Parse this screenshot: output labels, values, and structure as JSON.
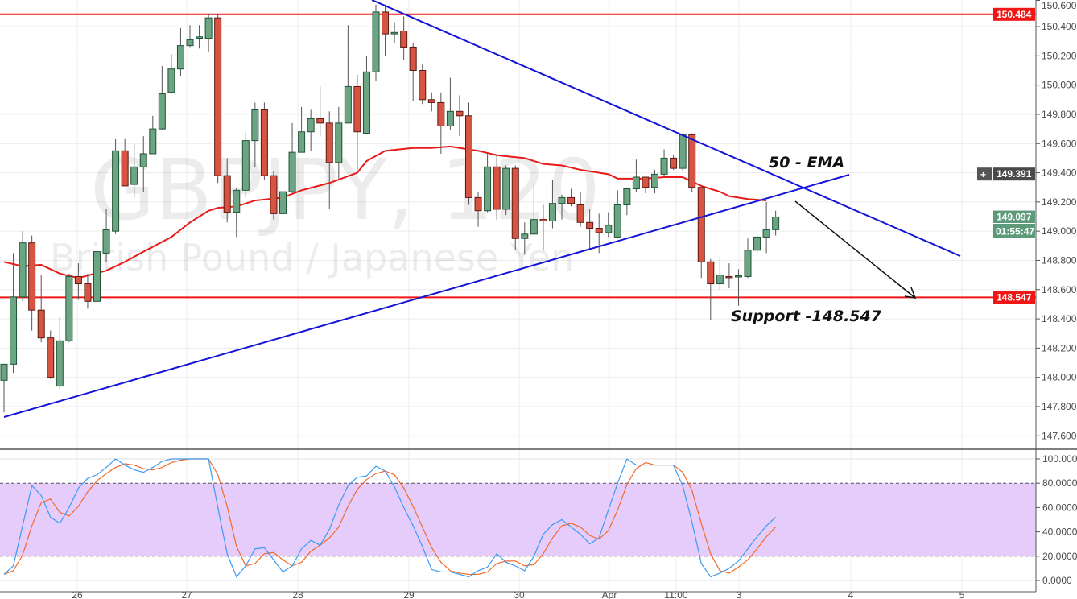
{
  "chart_data": [
    {
      "type": "candlestick",
      "watermark": {
        "symbol": "GBPJPY, 120",
        "description": "British Pound / Japanese Yen"
      },
      "y_axis": {
        "range": [
          147.508,
          150.582
        ],
        "ticks": [
          "147.600",
          "147.800",
          "148.000",
          "148.200",
          "148.400",
          "148.600",
          "148.800",
          "149.000",
          "149.200",
          "149.400",
          "149.600",
          "149.800",
          "150.000",
          "150.200",
          "150.400",
          "150.600"
        ]
      },
      "x_axis": {
        "tick_labels": [
          "26",
          "27",
          "28",
          "29",
          "30",
          "Apr",
          "11:00",
          "3",
          "4",
          "5"
        ]
      },
      "grid": true,
      "candles_ohlc": [
        [
          147.98,
          148.09,
          147.76,
          148.09
        ],
        [
          148.09,
          148.85,
          148.03,
          148.55
        ],
        [
          148.55,
          149.0,
          148.52,
          148.92
        ],
        [
          148.92,
          148.97,
          148.32,
          148.46
        ],
        [
          148.46,
          148.7,
          148.24,
          148.27
        ],
        [
          148.27,
          148.32,
          147.99,
          148.0
        ],
        [
          147.94,
          148.41,
          147.92,
          148.25
        ],
        [
          148.25,
          148.71,
          148.24,
          148.69
        ],
        [
          148.69,
          148.78,
          148.53,
          148.64
        ],
        [
          148.64,
          148.71,
          148.47,
          148.52
        ],
        [
          148.52,
          148.88,
          148.47,
          148.86
        ],
        [
          148.85,
          149.15,
          148.79,
          149.01
        ],
        [
          149.0,
          149.63,
          148.98,
          149.55
        ],
        [
          149.55,
          149.63,
          149.31,
          149.31
        ],
        [
          149.32,
          149.6,
          149.23,
          149.44
        ],
        [
          149.44,
          149.65,
          149.27,
          149.53
        ],
        [
          149.53,
          149.79,
          149.53,
          149.7
        ],
        [
          149.7,
          150.13,
          149.69,
          149.94
        ],
        [
          149.95,
          150.21,
          149.94,
          150.11
        ],
        [
          150.11,
          150.39,
          150.06,
          150.27
        ],
        [
          150.27,
          150.41,
          150.26,
          150.31
        ],
        [
          150.32,
          150.41,
          150.25,
          150.33
        ],
        [
          150.32,
          150.49,
          150.23,
          150.46
        ],
        [
          150.46,
          150.49,
          149.33,
          149.38
        ],
        [
          149.38,
          149.5,
          149.06,
          149.13
        ],
        [
          149.13,
          149.3,
          148.96,
          149.28
        ],
        [
          149.28,
          149.68,
          149.23,
          149.62
        ],
        [
          149.62,
          149.88,
          149.44,
          149.83
        ],
        [
          149.83,
          149.88,
          149.35,
          149.38
        ],
        [
          149.38,
          149.41,
          149.08,
          149.12
        ],
        [
          149.12,
          149.29,
          148.99,
          149.27
        ],
        [
          149.27,
          149.74,
          149.26,
          149.54
        ],
        [
          149.54,
          149.85,
          149.54,
          149.68
        ],
        [
          149.68,
          149.83,
          149.55,
          149.77
        ],
        [
          149.77,
          149.99,
          149.65,
          149.74
        ],
        [
          149.74,
          149.82,
          149.15,
          149.47
        ],
        [
          149.47,
          149.85,
          149.36,
          149.74
        ],
        [
          149.74,
          150.41,
          149.74,
          149.99
        ],
        [
          149.99,
          150.07,
          149.42,
          149.68
        ],
        [
          149.67,
          150.2,
          149.67,
          150.09
        ],
        [
          150.09,
          150.55,
          150.03,
          150.5
        ],
        [
          150.5,
          150.55,
          150.2,
          150.35
        ],
        [
          150.35,
          150.43,
          150.29,
          150.36
        ],
        [
          150.37,
          150.47,
          150.17,
          150.26
        ],
        [
          150.26,
          150.29,
          149.89,
          150.1
        ],
        [
          150.1,
          150.14,
          149.87,
          149.9
        ],
        [
          149.9,
          149.95,
          149.82,
          149.88
        ],
        [
          149.88,
          149.95,
          149.53,
          149.72
        ],
        [
          149.72,
          150.05,
          149.69,
          149.82
        ],
        [
          149.82,
          149.93,
          149.65,
          149.79
        ],
        [
          149.79,
          149.88,
          149.18,
          149.23
        ],
        [
          149.23,
          149.27,
          149.03,
          149.14
        ],
        [
          149.14,
          149.54,
          149.13,
          149.44
        ],
        [
          149.44,
          149.52,
          149.08,
          149.15
        ],
        [
          149.15,
          149.45,
          149.11,
          149.43
        ],
        [
          149.43,
          149.45,
          148.87,
          148.95
        ],
        [
          148.95,
          149.06,
          148.84,
          148.98
        ],
        [
          148.98,
          149.33,
          148.98,
          149.08
        ],
        [
          149.08,
          149.18,
          148.87,
          149.07
        ],
        [
          149.07,
          149.35,
          149.02,
          149.19
        ],
        [
          149.19,
          149.25,
          149.08,
          149.23
        ],
        [
          149.23,
          149.29,
          149.17,
          149.19
        ],
        [
          149.18,
          149.27,
          149.03,
          149.06
        ],
        [
          149.06,
          149.15,
          148.87,
          149.02
        ],
        [
          149.02,
          149.12,
          148.85,
          148.99
        ],
        [
          148.99,
          149.13,
          148.96,
          149.04
        ],
        [
          148.96,
          149.28,
          148.95,
          149.18
        ],
        [
          149.18,
          149.3,
          149.11,
          149.29
        ],
        [
          149.29,
          149.49,
          149.27,
          149.37
        ],
        [
          149.37,
          149.37,
          149.26,
          149.3
        ],
        [
          149.3,
          149.42,
          149.26,
          149.39
        ],
        [
          149.39,
          149.56,
          149.38,
          149.5
        ],
        [
          149.5,
          149.52,
          149.42,
          149.43
        ],
        [
          149.43,
          149.67,
          149.41,
          149.66
        ],
        [
          149.66,
          149.67,
          149.27,
          149.3
        ],
        [
          149.3,
          149.3,
          148.68,
          148.79
        ],
        [
          148.79,
          148.81,
          148.39,
          148.64
        ],
        [
          148.64,
          148.82,
          148.6,
          148.7
        ],
        [
          148.69,
          148.78,
          148.61,
          148.685
        ],
        [
          148.69,
          148.74,
          148.49,
          148.695
        ],
        [
          148.69,
          148.95,
          148.68,
          148.87
        ],
        [
          148.87,
          148.99,
          148.84,
          148.96
        ],
        [
          148.96,
          149.2,
          148.85,
          149.01
        ],
        [
          149.01,
          149.14,
          148.97,
          149.097
        ]
      ],
      "ema_50": [
        [
          0,
          148.79
        ],
        [
          2,
          148.76
        ],
        [
          4,
          148.77
        ],
        [
          6,
          148.71
        ],
        [
          8,
          148.68
        ],
        [
          11,
          148.73
        ],
        [
          13,
          148.79
        ],
        [
          15,
          148.86
        ],
        [
          18,
          148.96
        ],
        [
          20,
          149.06
        ],
        [
          22,
          149.14
        ],
        [
          23,
          149.16
        ],
        [
          25,
          149.17
        ],
        [
          27,
          149.21
        ],
        [
          30,
          149.23
        ],
        [
          32,
          149.28
        ],
        [
          35,
          149.33
        ],
        [
          38,
          149.4
        ],
        [
          39,
          149.48
        ],
        [
          41,
          149.55
        ],
        [
          44,
          149.57
        ],
        [
          46,
          149.57
        ],
        [
          48,
          149.58
        ],
        [
          51,
          149.55
        ],
        [
          53,
          149.52
        ],
        [
          56,
          149.5
        ],
        [
          58,
          149.46
        ],
        [
          60,
          149.45
        ],
        [
          62,
          149.42
        ],
        [
          65,
          149.39
        ],
        [
          66,
          149.36
        ],
        [
          69,
          149.36
        ],
        [
          71,
          149.37
        ],
        [
          73,
          149.37
        ],
        [
          75,
          149.31
        ],
        [
          77,
          149.27
        ],
        [
          78,
          149.24
        ],
        [
          80,
          149.22
        ],
        [
          82,
          149.21
        ]
      ],
      "horizontal_levels": [
        {
          "price": "150.484",
          "color": "#f01616"
        },
        {
          "price": "148.547",
          "color": "#f01616"
        }
      ],
      "price_badges": {
        "crosshair": "149.391",
        "last": "149.097",
        "countdown": "01:55:47"
      },
      "annotations": {
        "ema_label": "50 - EMA",
        "support_label": "Support -148.547"
      },
      "colors": {
        "up": "#6ba583",
        "down": "#d75442",
        "ema": "#e81a1a",
        "trendline": "#1414d8",
        "k": "#3d9bf0",
        "d": "#f26a2a",
        "band": "#e5ccfb"
      }
    },
    {
      "type": "line",
      "y_axis": {
        "range": [
          0,
          100
        ],
        "ticks": [
          "0.0000",
          "20.0000",
          "40.0000",
          "60.0000",
          "80.0000",
          "100.0000"
        ]
      },
      "band": [
        20,
        80
      ],
      "series": [
        {
          "values": [
            5,
            12,
            45,
            78,
            70,
            52,
            47,
            60,
            76,
            84,
            87,
            93,
            100,
            95,
            91,
            89,
            93,
            98,
            100,
            100,
            100,
            100,
            100,
            60,
            22,
            3,
            12,
            26,
            27,
            17,
            7,
            12,
            26,
            33,
            29,
            42,
            62,
            78,
            85,
            86,
            94,
            90,
            77,
            60,
            45,
            28,
            9,
            7,
            7,
            5,
            3,
            8,
            11,
            22,
            15,
            12,
            8,
            20,
            38,
            46,
            50,
            44,
            38,
            30,
            35,
            58,
            80,
            100,
            95,
            95,
            95,
            95,
            95,
            78,
            48,
            14,
            3,
            6,
            10,
            16,
            26,
            36,
            45,
            52
          ]
        },
        {
          "values": [
            5,
            8,
            21,
            45,
            64,
            67,
            56,
            53,
            61,
            73,
            82,
            88,
            93,
            96,
            95,
            92,
            91,
            93,
            97,
            99,
            100,
            100,
            100,
            87,
            61,
            28,
            12,
            14,
            22,
            23,
            17,
            12,
            15,
            24,
            29,
            35,
            44,
            61,
            75,
            83,
            88,
            90,
            87,
            76,
            61,
            44,
            27,
            15,
            8,
            6,
            5,
            5,
            7,
            14,
            16,
            16,
            12,
            13,
            22,
            35,
            45,
            47,
            44,
            37,
            34,
            41,
            58,
            79,
            92,
            97,
            95,
            95,
            95,
            89,
            74,
            47,
            22,
            8,
            6,
            11,
            17,
            26,
            36,
            44
          ]
        }
      ]
    }
  ]
}
